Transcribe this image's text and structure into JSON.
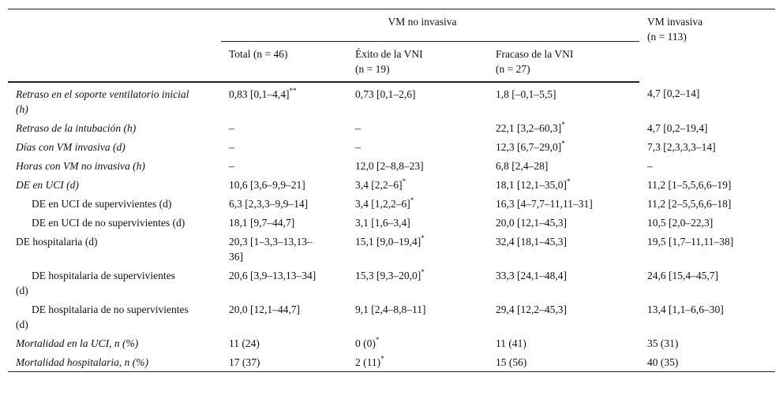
{
  "table": {
    "group_header": "VM no invasiva",
    "invasive_header": {
      "title": "VM invasiva",
      "n": "(n = 113)"
    },
    "columns": [
      {
        "title": "Total",
        "n": "(n = 46)"
      },
      {
        "title": "Éxito de la VNI",
        "n": "(n = 19)"
      },
      {
        "title": "Fracaso de la VNI",
        "n": "(n = 27)"
      }
    ],
    "rows": [
      {
        "label": "Retraso en el soporte ventilatorio inicial (h)",
        "cells": [
          {
            "text": "0,83 [0,1–4,4]",
            "sup": "**"
          },
          "0,73 [0,1–2,6]",
          "1,8 [–0,1–5,5]",
          "4,7 [0,2–14]"
        ]
      },
      {
        "label": "Retraso de la intubación (h)",
        "cells": [
          "–",
          "–",
          {
            "text": "22,1 [3,2–60,3]",
            "sup": "*"
          },
          "4,7 [0,2–19,4]"
        ]
      },
      {
        "label": "Días con VM invasiva (d)",
        "cells": [
          "–",
          "–",
          {
            "text": "12,3 [6,7–29,0]",
            "sup": "*"
          },
          "7,3 [2,3,3,3–14]"
        ]
      },
      {
        "label": "Horas con VM no invasiva (h)",
        "cells": [
          "–",
          "12,0 [2–8,8–23]",
          "6,8 [2,4–28]",
          "–"
        ]
      },
      {
        "label": "DE en UCI (d)",
        "cells": [
          "10,6 [3,6–9,9–21]",
          {
            "text": "3,4 [2,2–6]",
            "sup": "*"
          },
          {
            "text": "18,1 [12,1–35,0]",
            "sup": "*"
          },
          "11,2 [1–5,5,6,6–19]"
        ]
      },
      {
        "label": "DE en UCI de supervivientes (d)",
        "cells": [
          "6,3 [2,3,3–9,9–14]",
          {
            "text": "3,4 [1,2,2–6]",
            "sup": "*"
          },
          "16,3 [4–7,7–11,11–31]",
          "11,2 [2–5,5,6,6–18]"
        ]
      },
      {
        "label": "DE en UCI de no supervivientes (d)",
        "cells": [
          "18,1 [9,7–44,7]",
          "3,1 [1,6–3,4]",
          "20,0 [12,1–45,3]",
          "10,5 [2,0–22,3]"
        ]
      },
      {
        "label": "DE hospitalaria (d)",
        "cells": [
          "20,3 [1–3,3–13,13–36]",
          {
            "text": "15,1 [9,0–19,4]",
            "sup": "*"
          },
          "32,4 [18,1–45,3]",
          "19,5 [1,7–11,11–38]"
        ]
      },
      {
        "label": "DE hospitalaria de supervivientes (d)",
        "cells": [
          "20,6 [3,9–13,13–34]",
          {
            "text": "15,3 [9,3–20,0]",
            "sup": "*"
          },
          "33,3 [24,1–48,4]",
          "24,6 [15,4–45,7]"
        ]
      },
      {
        "label": "DE hospitalaria de no supervivientes (d)",
        "cells": [
          "20,0 [12,1–44,7]",
          "9,1 [2,4–8,8–11]",
          "29,4 [12,2–45,3]",
          "13,4 [1,1–6,6–30]"
        ]
      },
      {
        "label": "Mortalidad en la UCI, n (%)",
        "cells": [
          "11 (24)",
          {
            "text": "0 (0)",
            "sup": "*"
          },
          "11 (41)",
          "35 (31)"
        ]
      },
      {
        "label": "Mortalidad hospitalaria, n (%)",
        "cells": [
          "17 (37)",
          {
            "text": "2 (11)",
            "sup": "*"
          },
          "15 (56)",
          "40 (35)"
        ]
      }
    ]
  }
}
